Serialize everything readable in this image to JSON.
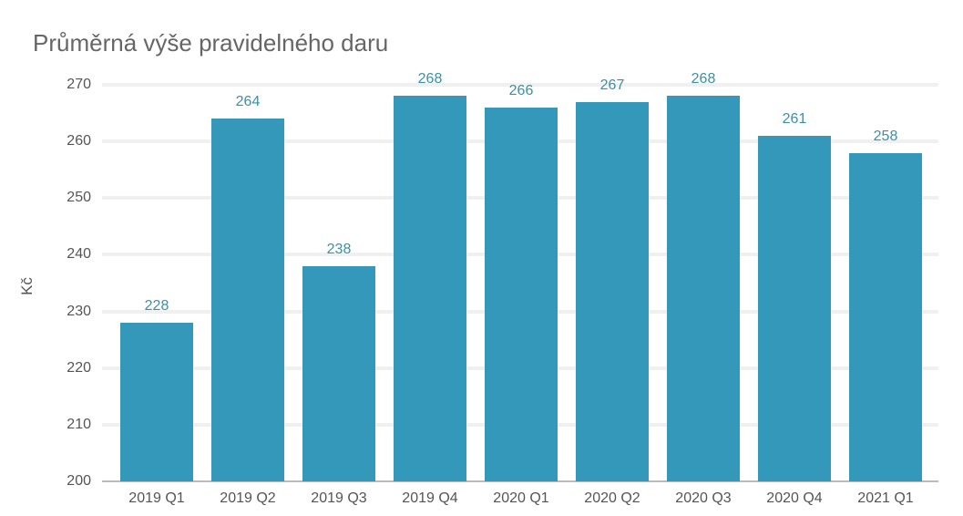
{
  "chart_data": {
    "type": "bar",
    "title": "Průměrná výše pravidelného daru",
    "xlabel": "",
    "ylabel": "Kč",
    "ylim": [
      200,
      270
    ],
    "yticks": [
      200,
      210,
      220,
      230,
      240,
      250,
      260,
      270
    ],
    "grid": true,
    "legend": null,
    "categories": [
      "2019 Q1",
      "2019 Q2",
      "2019 Q3",
      "2019 Q4",
      "2020 Q1",
      "2020 Q2",
      "2020 Q3",
      "2020 Q4",
      "2021 Q1"
    ],
    "values": [
      228,
      264,
      238,
      268,
      266,
      267,
      268,
      261,
      258
    ],
    "data_labels": true,
    "colors": {
      "bar": "#3398ba",
      "label": "#3a90a8"
    }
  }
}
